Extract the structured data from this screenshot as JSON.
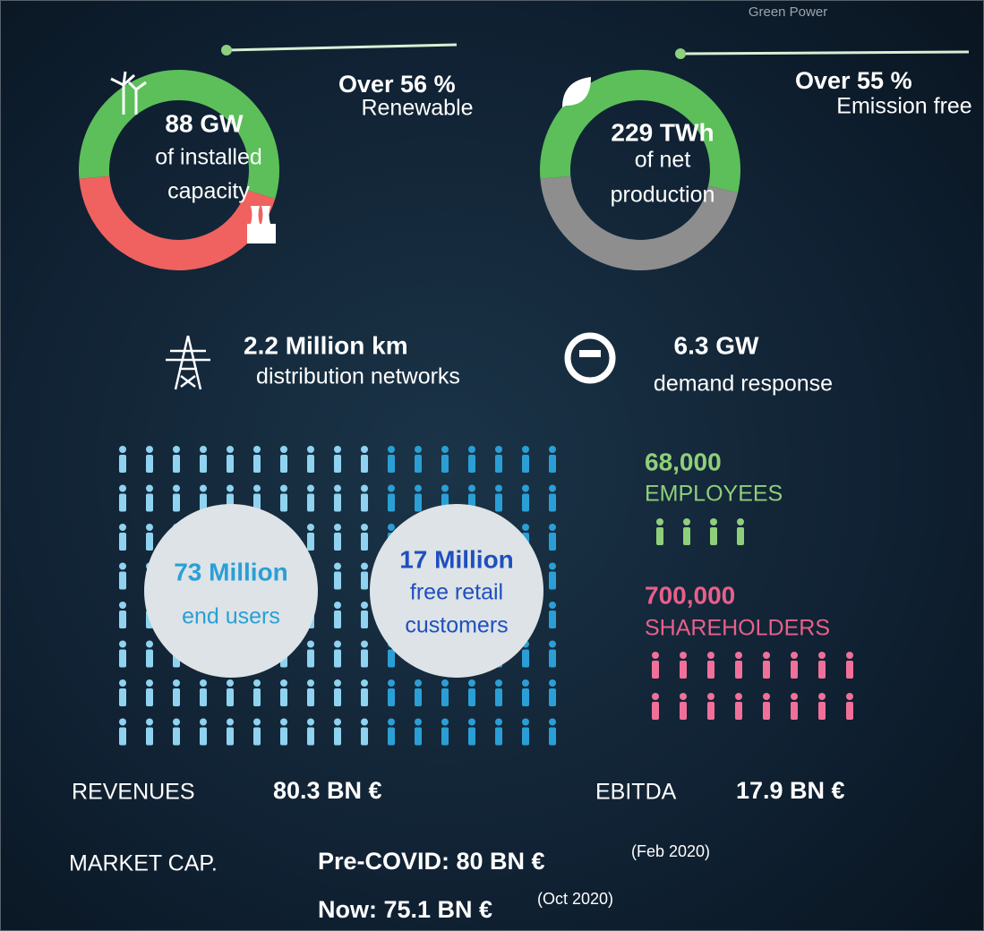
{
  "header": {
    "label": "Green Power"
  },
  "capacity": {
    "value": "88 GW",
    "line_1": "of installed",
    "line_2": "capacity",
    "renewable": {
      "value": 56,
      "label": "Over 56 %"
    },
    "share_caption": "Renewable"
  },
  "production": {
    "value": "229 TWh",
    "line_1": "of net",
    "line_2": "production",
    "emission_free": {
      "value": 55,
      "label": "Over 55 %"
    },
    "share_caption": "Emission free"
  },
  "networks": {
    "value": "2.2 Million km",
    "caption": "distribution networks"
  },
  "demand": {
    "value": "6.3 GW",
    "caption": "demand response"
  },
  "end_users": {
    "value": "73 Million",
    "caption": "end users"
  },
  "customers": {
    "value": "17 Million",
    "line_1": "free retail",
    "line_2": "customers"
  },
  "employees": {
    "value": "68,000",
    "caption": "EMPLOYEES"
  },
  "shareholders": {
    "value": "700,000",
    "caption": "SHAREHOLDERS"
  },
  "revenues": {
    "label": "REVENUES",
    "value": "80.3 BN €"
  },
  "ebitda": {
    "label": "EBITDA",
    "value": "17.9 BN €"
  },
  "market_cap": {
    "label": "MARKET CAP.",
    "pre_covid": "Pre-COVID: 80 BN €",
    "pre_covid_date": "(Feb 2020)",
    "now": "Now: 75.1 BN €",
    "now_date": "(Oct 2020)"
  }
}
